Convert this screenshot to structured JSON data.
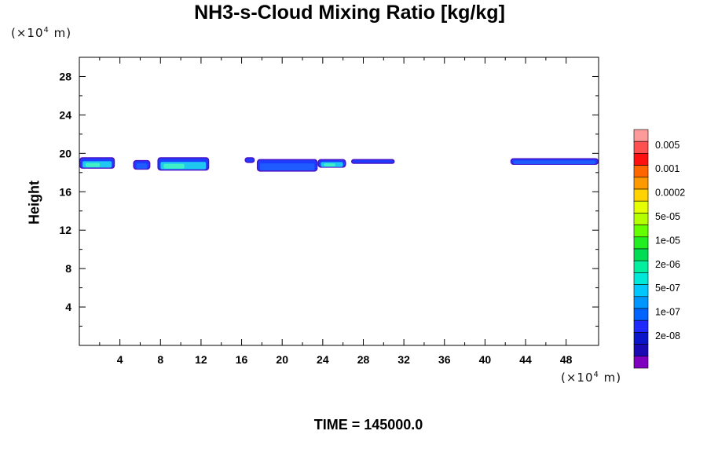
{
  "chart_data": {
    "type": "contour",
    "title": "NH3-s-Cloud Mixing Ratio [kg/kg]",
    "ylabel": "Height",
    "x_unit": "(×10",
    "x_unit_exp": "4",
    "x_unit_tail": " m)",
    "y_unit": "(×10",
    "y_unit_exp": "4",
    "y_unit_tail": " m)",
    "xlim": [
      0,
      51.2
    ],
    "ylim": [
      0,
      30
    ],
    "x_ticks": [
      4,
      8,
      12,
      16,
      20,
      24,
      28,
      32,
      36,
      40,
      44,
      48
    ],
    "y_ticks": [
      4,
      8,
      12,
      16,
      20,
      24,
      28
    ],
    "colorbar": {
      "labels": [
        "0.005",
        "0.001",
        "0.0002",
        "5e-05",
        "1e-05",
        "2e-06",
        "5e-07",
        "1e-07",
        "2e-08"
      ],
      "colors": [
        "#ff9a9a",
        "#ff5050",
        "#ff1010",
        "#ff6600",
        "#ff9900",
        "#ffd200",
        "#e6ff00",
        "#b4ff00",
        "#66ff00",
        "#22ee22",
        "#00dd55",
        "#00f0a0",
        "#00e8d8",
        "#00c8ff",
        "#0096ff",
        "#0064ff",
        "#1e28ff",
        "#0a14c8",
        "#1a0ab4",
        "#8000c0"
      ]
    },
    "cloud_patches": [
      {
        "x0": 0.0,
        "x1": 3.5,
        "y0": 18.4,
        "y1": 19.6,
        "level": "5e-07"
      },
      {
        "x0": 5.3,
        "x1": 7.0,
        "y0": 18.3,
        "y1": 19.3,
        "level": "1e-07"
      },
      {
        "x0": 7.7,
        "x1": 12.8,
        "y0": 18.2,
        "y1": 19.6,
        "level": "5e-07"
      },
      {
        "x0": 16.3,
        "x1": 17.3,
        "y0": 19.0,
        "y1": 19.6,
        "level": "2e-08"
      },
      {
        "x0": 17.5,
        "x1": 23.5,
        "y0": 18.1,
        "y1": 19.4,
        "level": "1e-07"
      },
      {
        "x0": 23.5,
        "x1": 26.3,
        "y0": 18.5,
        "y1": 19.4,
        "level": "5e-07"
      },
      {
        "x0": 26.8,
        "x1": 31.1,
        "y0": 18.9,
        "y1": 19.4,
        "level": "2e-08"
      },
      {
        "x0": 42.5,
        "x1": 51.2,
        "y0": 18.8,
        "y1": 19.5,
        "level": "1e-07"
      }
    ]
  },
  "footer": {
    "time_label": "TIME = 145000.0"
  }
}
